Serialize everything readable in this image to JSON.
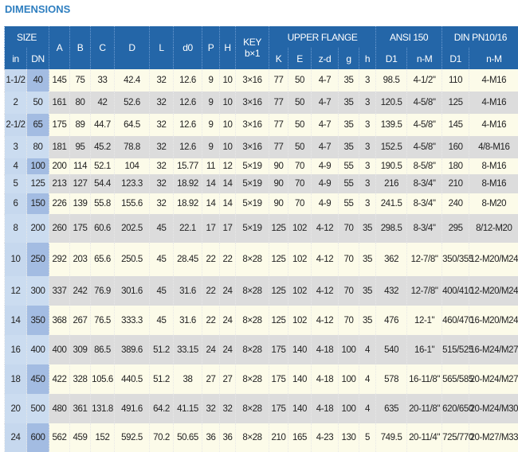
{
  "title": "DIMENSIONS",
  "header": {
    "size": "SIZE",
    "in": "in",
    "dn": "DN",
    "A": "A",
    "B": "B",
    "C": "C",
    "D": "D",
    "L": "L",
    "d0": "d0",
    "P": "P",
    "H": "H",
    "key": "KEY",
    "key_sub": "b×1",
    "upper_flange": "UPPER FLANGE",
    "K": "K",
    "E": "E",
    "zd": "z-d",
    "g": "g",
    "h": "h",
    "ansi": "ANSI 150",
    "ansi_d1": "D1",
    "ansi_nm": "n-M",
    "din": "DIN PN10/16",
    "din_d1": "D1",
    "din_nm": "n-M"
  },
  "rows": [
    [
      "1-1/2",
      "40",
      "145",
      "75",
      "33",
      "42.4",
      "32",
      "12.6",
      "9",
      "10",
      "3×16",
      "77",
      "50",
      "4-7",
      "35",
      "3",
      "98.5",
      "4-1/2\"",
      "110",
      "4-M16"
    ],
    [
      "2",
      "50",
      "161",
      "80",
      "42",
      "52.6",
      "32",
      "12.6",
      "9",
      "10",
      "3×16",
      "77",
      "50",
      "4-7",
      "35",
      "3",
      "120.5",
      "4-5/8\"",
      "125",
      "4-M16"
    ],
    [
      "2-1/2",
      "65",
      "175",
      "89",
      "44.7",
      "64.5",
      "32",
      "12.6",
      "9",
      "10",
      "3×16",
      "77",
      "50",
      "4-7",
      "35",
      "3",
      "139.5",
      "4-5/8\"",
      "145",
      "4-M16"
    ],
    [
      "3",
      "80",
      "181",
      "95",
      "45.2",
      "78.8",
      "32",
      "12.6",
      "9",
      "10",
      "3×16",
      "77",
      "50",
      "4-7",
      "35",
      "3",
      "152.5",
      "4-5/8\"",
      "160",
      "4/8-M16"
    ],
    [
      "4",
      "100",
      "200",
      "114",
      "52.1",
      "104",
      "32",
      "15.77",
      "11",
      "12",
      "5×19",
      "90",
      "70",
      "4-9",
      "55",
      "3",
      "190.5",
      "8-5/8\"",
      "180",
      "8-M16"
    ],
    [
      "5",
      "125",
      "213",
      "127",
      "54.4",
      "123.3",
      "32",
      "18.92",
      "14",
      "14",
      "5×19",
      "90",
      "70",
      "4-9",
      "55",
      "3",
      "216",
      "8-3/4\"",
      "210",
      "8-M16"
    ],
    [
      "6",
      "150",
      "226",
      "139",
      "55.8",
      "155.6",
      "32",
      "18.92",
      "14",
      "14",
      "5×19",
      "90",
      "70",
      "4-9",
      "55",
      "3",
      "241.5",
      "8-3/4\"",
      "240",
      "8-M20"
    ],
    [
      "8",
      "200",
      "260",
      "175",
      "60.6",
      "202.5",
      "45",
      "22.1",
      "17",
      "17",
      "5×19",
      "125",
      "102",
      "4-12",
      "70",
      "35",
      "298.5",
      "8-3/4\"",
      "295",
      "8/12-M20"
    ],
    [
      "10",
      "250",
      "292",
      "203",
      "65.6",
      "250.5",
      "45",
      "28.45",
      "22",
      "22",
      "8×28",
      "125",
      "102",
      "4-12",
      "70",
      "35",
      "362",
      "12-7/8\"",
      "350/355",
      "12-M20/M24"
    ],
    [
      "12",
      "300",
      "337",
      "242",
      "76.9",
      "301.6",
      "45",
      "31.6",
      "22",
      "24",
      "8×28",
      "125",
      "102",
      "4-12",
      "70",
      "35",
      "432",
      "12-7/8\"",
      "400/410",
      "12-M20/M24"
    ],
    [
      "14",
      "350",
      "368",
      "267",
      "76.5",
      "333.3",
      "45",
      "31.6",
      "22",
      "24",
      "8×28",
      "125",
      "102",
      "4-12",
      "70",
      "35",
      "476",
      "12-1\"",
      "460/470",
      "16-M20/M24"
    ],
    [
      "16",
      "400",
      "400",
      "309",
      "86.5",
      "389.6",
      "51.2",
      "33.15",
      "24",
      "24",
      "8×28",
      "175",
      "140",
      "4-18",
      "100",
      "4",
      "540",
      "16-1\"",
      "515/525",
      "16-M24/M27"
    ],
    [
      "18",
      "450",
      "422",
      "328",
      "105.6",
      "440.5",
      "51.2",
      "38",
      "27",
      "27",
      "8×28",
      "175",
      "140",
      "4-18",
      "100",
      "4",
      "578",
      "16-11/8\"",
      "565/585",
      "20-M24/M27"
    ],
    [
      "20",
      "500",
      "480",
      "361",
      "131.8",
      "491.6",
      "64.2",
      "41.15",
      "32",
      "32",
      "8×28",
      "175",
      "140",
      "4-18",
      "100",
      "4",
      "635",
      "20-11/8\"",
      "620/650",
      "20-M24/M30"
    ],
    [
      "24",
      "600",
      "562",
      "459",
      "152",
      "592.5",
      "70.2",
      "50.65",
      "36",
      "36",
      "8×28",
      "210",
      "165",
      "4-23",
      "130",
      "5",
      "749.5",
      "20-11/4\"",
      "725/770",
      "20-M27/M33"
    ]
  ]
}
